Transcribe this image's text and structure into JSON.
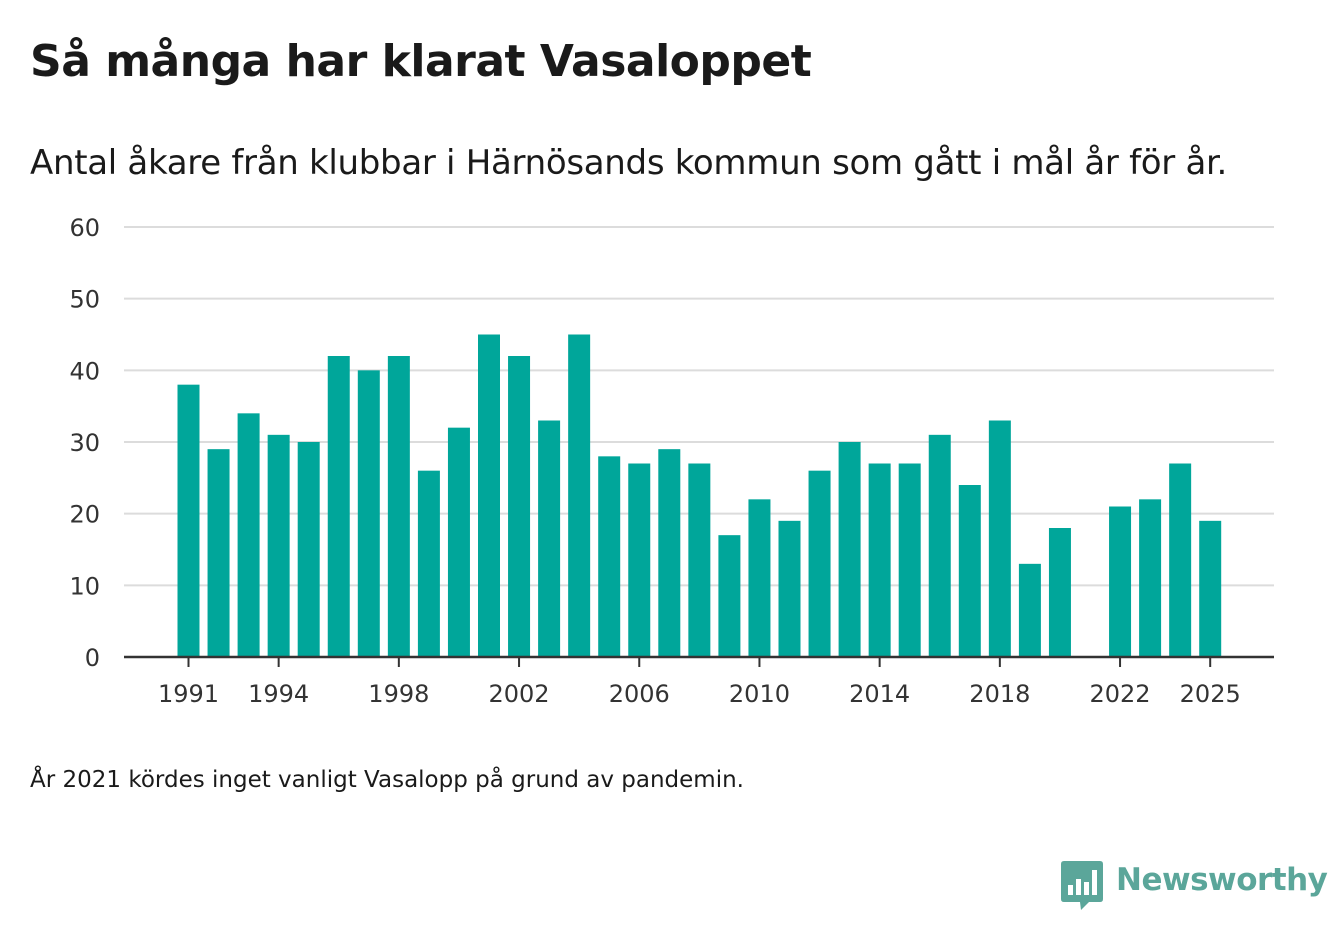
{
  "chart_data": {
    "type": "bar",
    "title": "Så många har klarat Vasaloppet",
    "subtitle": "Antal åkare från klubbar i Härnösands kommun som gått i mål år för år.",
    "footnote": "År 2021 kördes inget vanligt Vasalopp på grund av pandemin.",
    "xlabel": "",
    "ylabel": "",
    "ylim": [
      0,
      60
    ],
    "yticks": [
      0,
      10,
      20,
      30,
      40,
      50,
      60
    ],
    "xtick_labels": [
      "1991",
      "1994",
      "1998",
      "2002",
      "2006",
      "2010",
      "2014",
      "2018",
      "2022",
      "2025"
    ],
    "categories": [
      1991,
      1992,
      1993,
      1994,
      1995,
      1996,
      1997,
      1998,
      1999,
      2000,
      2001,
      2002,
      2003,
      2004,
      2005,
      2006,
      2007,
      2008,
      2009,
      2010,
      2011,
      2012,
      2013,
      2014,
      2015,
      2016,
      2017,
      2018,
      2019,
      2020,
      2021,
      2022,
      2023,
      2024,
      2025
    ],
    "values": [
      38,
      29,
      34,
      31,
      30,
      42,
      40,
      42,
      26,
      32,
      45,
      42,
      33,
      45,
      28,
      27,
      29,
      27,
      17,
      22,
      19,
      26,
      30,
      27,
      27,
      31,
      24,
      33,
      13,
      18,
      null,
      21,
      22,
      27,
      19
    ],
    "bar_color": "#00a69a",
    "grid": true
  },
  "branding": {
    "logo_text": "Newsworthy",
    "logo_icon": "bar-chart-speech-bubble-icon",
    "logo_color": "#5ba69a"
  }
}
